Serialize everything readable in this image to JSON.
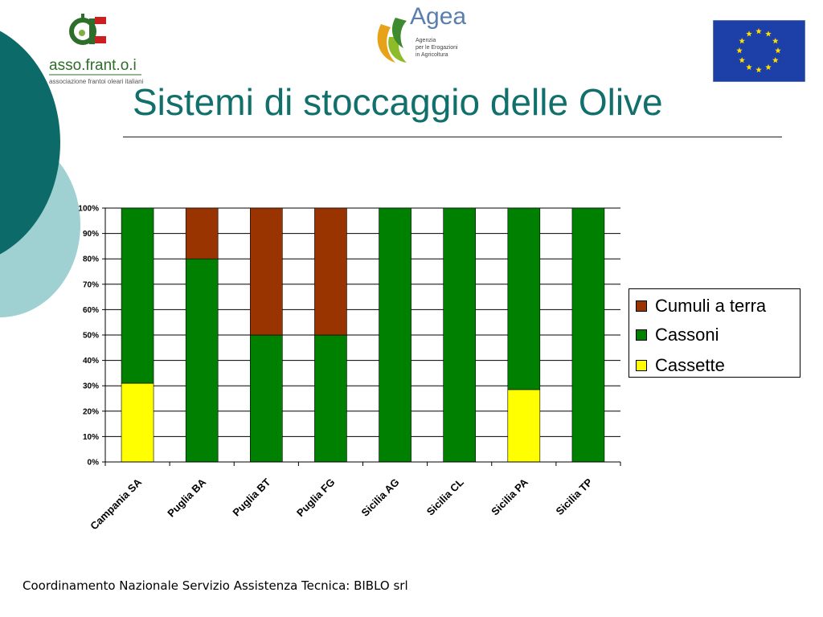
{
  "slide": {
    "title": "Sistemi di stoccaggio delle Olive",
    "footer": "Coordinamento Nazionale Servizio Assistenza Tecnica: BIBLO srl"
  },
  "logos": {
    "asso": {
      "brand": "asso.frant.o.i",
      "subtitle": "associazione frantoi oleari italiani"
    },
    "agea": {
      "brand": "Agea",
      "line1": "Agenzia",
      "line2": "per le Erogazioni",
      "line3": "in Agricoltura"
    }
  },
  "colors": {
    "title": "#11706b",
    "cumuli": "#993300",
    "cassoni": "#008000",
    "cassette": "#ffff00",
    "eu_blue": "#1c3fa8",
    "eu_star": "#ffdd00"
  },
  "chart_data": {
    "type": "bar",
    "stacked": true,
    "categories": [
      "Campania SA",
      "Puglia BA",
      "Puglia BT",
      "Puglia FG",
      "Sicilia AG",
      "Sicilia CL",
      "Sicilia PA",
      "Sicilia TP"
    ],
    "series": [
      {
        "name": "Cassette",
        "color": "#ffff00",
        "values": [
          31,
          0,
          0,
          0,
          0,
          0,
          28.5,
          0
        ]
      },
      {
        "name": "Cassoni",
        "color": "#008000",
        "values": [
          69,
          80,
          50,
          50,
          100,
          100,
          71.5,
          100
        ]
      },
      {
        "name": "Cumuli a terra",
        "color": "#993300",
        "values": [
          0,
          20,
          50,
          50,
          0,
          0,
          0,
          0
        ]
      }
    ],
    "ylim": [
      0,
      100
    ],
    "yticks": [
      "0%",
      "10%",
      "20%",
      "30%",
      "40%",
      "50%",
      "60%",
      "70%",
      "80%",
      "90%",
      "100%"
    ],
    "grid": true,
    "legend_position": "right",
    "legend_order": [
      "Cumuli a terra",
      "Cassoni",
      "Cassette"
    ]
  }
}
